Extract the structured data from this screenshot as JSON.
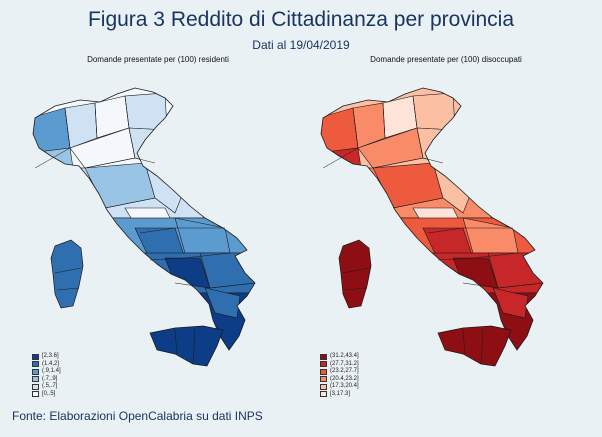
{
  "title": "Figura 3 Reddito di Cittadinanza per provincia",
  "subtitle": "Dati al 19/04/2019",
  "source": "Fonte: Elaborazioni OpenCalabria su dati INPS",
  "maps": [
    {
      "title": "Domande presentate per (100) residenti",
      "legend": [
        {
          "label": "[2,3.6]",
          "color": "#0d3d86"
        },
        {
          "label": "(1.4,2]",
          "color": "#2f6fb0"
        },
        {
          "label": "(.9,1.4]",
          "color": "#5c9bd0"
        },
        {
          "label": "(.7,.9]",
          "color": "#9ac4e6"
        },
        {
          "label": "(.5,.7]",
          "color": "#cfe2f4"
        },
        {
          "label": "[0,.5]",
          "color": "#f4f8fc"
        }
      ]
    },
    {
      "title": "Domande presentate per (100) disoccupati",
      "legend": [
        {
          "label": "(31.2,43.4]",
          "color": "#8e0f13"
        },
        {
          "label": "(27.7,31.2]",
          "color": "#c8272a"
        },
        {
          "label": "(23.2,27.7]",
          "color": "#ee5a3e"
        },
        {
          "label": "(20.4,23.2]",
          "color": "#f98b68"
        },
        {
          "label": "(17.3,20.4]",
          "color": "#fbbfa4"
        },
        {
          "label": "[3,17.3]",
          "color": "#fde3d8"
        }
      ]
    }
  ]
}
